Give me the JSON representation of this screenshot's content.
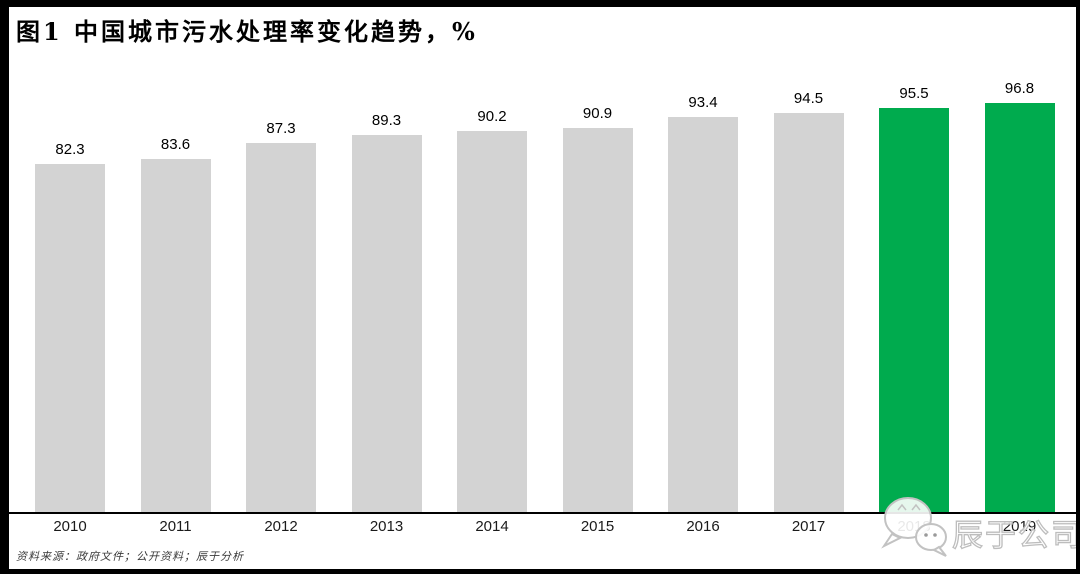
{
  "title": "图1 中国城市污水处理率变化趋势，%",
  "source_note": "资料来源：政府文件；公开资料；辰于分析",
  "watermark": {
    "icon": "wechat-logo-icon",
    "text": "辰于公司"
  },
  "colors": {
    "bar_default": "#D3D3D3",
    "bar_highlight": "#00AB4E",
    "axis": "#000000",
    "frame": "#000000",
    "watermark_gray": "#C2C2C2"
  },
  "chart_data": {
    "type": "bar",
    "title": "图1 中国城市污水处理率变化趋势，%",
    "categories": [
      "2010",
      "2011",
      "2012",
      "2013",
      "2014",
      "2015",
      "2016",
      "2017",
      "2018",
      "2019"
    ],
    "values": [
      82.3,
      83.6,
      87.3,
      89.3,
      90.2,
      90.9,
      93.4,
      94.5,
      95.5,
      96.8
    ],
    "value_labels": [
      "82.3",
      "83.6",
      "87.3",
      "89.3",
      "90.2",
      "90.9",
      "93.4",
      "94.5",
      "95.5",
      "96.8"
    ],
    "highlighted_categories": [
      "2018",
      "2019"
    ],
    "xlabel": "",
    "ylabel": "",
    "ylim": [
      0,
      100
    ],
    "grid": false,
    "legend": null,
    "value_labels_shown": true
  }
}
